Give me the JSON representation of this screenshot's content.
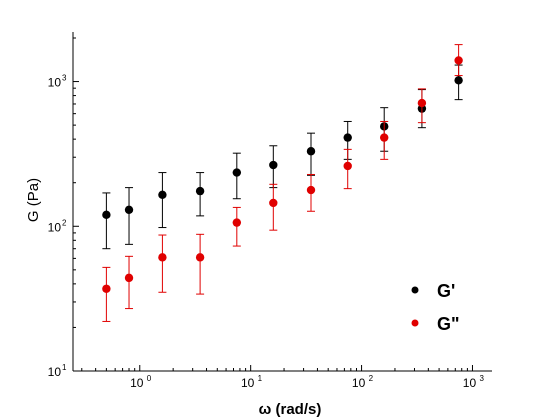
{
  "chart_data": {
    "type": "scatter",
    "xlabel": "ω (rad/s)",
    "ylabel": "G (Pa)",
    "xscale": "log",
    "yscale": "log",
    "xlim": [
      0.25,
      1500
    ],
    "ylim": [
      10,
      2200
    ],
    "x_ticks": [
      {
        "value": 1,
        "base": "10",
        "exp": "0"
      },
      {
        "value": 10,
        "base": "10",
        "exp": "1"
      },
      {
        "value": 100,
        "base": "10",
        "exp": "2"
      },
      {
        "value": 1000,
        "base": "10",
        "exp": "3"
      }
    ],
    "y_ticks": [
      {
        "value": 10,
        "base": "10",
        "exp": "1"
      },
      {
        "value": 100,
        "base": "10",
        "exp": "2"
      },
      {
        "value": 1000,
        "base": "10",
        "exp": "3"
      }
    ],
    "grid": false,
    "legend_position": "bottom-right",
    "x": [
      0.5,
      0.8,
      1.6,
      3.5,
      7.5,
      16,
      35,
      75,
      160,
      350,
      750
    ],
    "series": [
      {
        "name": "G'",
        "color": "#000000",
        "values": [
          120,
          130,
          165,
          175,
          235,
          265,
          330,
          410,
          490,
          650,
          1020
        ],
        "err_low": [
          70,
          75,
          98,
          118,
          155,
          185,
          225,
          290,
          330,
          480,
          750
        ],
        "err_high": [
          170,
          185,
          235,
          235,
          320,
          360,
          440,
          530,
          660,
          880,
          1300
        ]
      },
      {
        "name": "G\"",
        "color": "#e00000",
        "values": [
          37,
          44,
          61,
          61,
          106,
          145,
          178,
          261,
          410,
          710,
          1400
        ],
        "err_low": [
          22,
          27,
          35,
          34,
          73,
          94,
          127,
          182,
          290,
          520,
          1100
        ],
        "err_high": [
          52,
          62,
          87,
          88,
          135,
          195,
          228,
          340,
          530,
          890,
          1800
        ]
      }
    ]
  }
}
